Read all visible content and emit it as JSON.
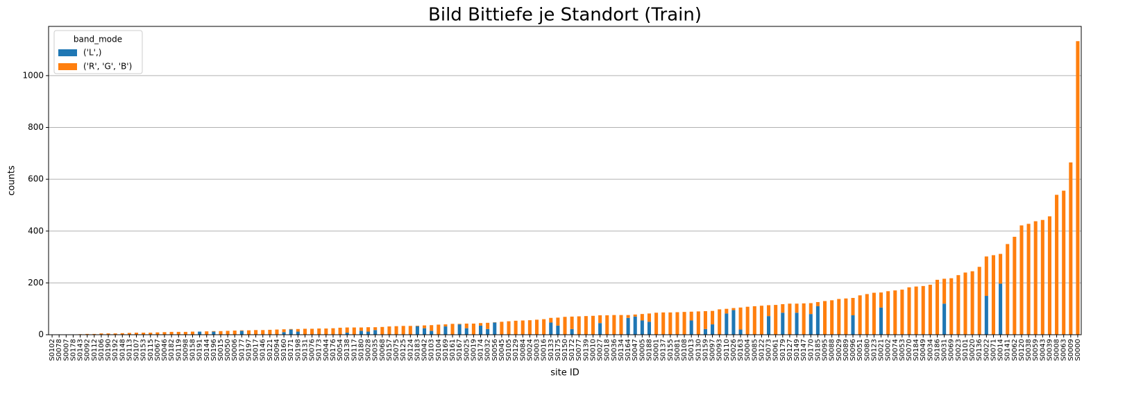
{
  "chart_data": {
    "type": "stacked_bar",
    "title": "Bild Bittiefe je Standort (Train)",
    "xlabel": "site ID",
    "ylabel": "counts",
    "legend_title": "band_mode",
    "legend_loc": "upper left",
    "grid": "y",
    "ylim": [
      0,
      1190
    ],
    "yticks": [
      0,
      200,
      400,
      600,
      800,
      1000
    ],
    "categories": [
      "S0102",
      "S0078",
      "S0007",
      "S0178",
      "S0143",
      "S0092",
      "S0112",
      "S0106",
      "S0190",
      "S0192",
      "S0148",
      "S0113",
      "S0107",
      "S0153",
      "S0115",
      "S0067",
      "S0046",
      "S0182",
      "S0119",
      "S0098",
      "S0158",
      "S0191",
      "S0144",
      "S0196",
      "S0015",
      "S0050",
      "S0006",
      "S0177",
      "S0197",
      "S0017",
      "S0146",
      "S0121",
      "S0094",
      "S0160",
      "S0171",
      "S0198",
      "S0131",
      "S0076",
      "S0173",
      "S0044",
      "S0176",
      "S0054",
      "S0138",
      "S0117",
      "S0180",
      "S0028",
      "S0035",
      "S0068",
      "S0157",
      "S0075",
      "S0125",
      "S0124",
      "S0183",
      "S0042",
      "S0103",
      "S0104",
      "S0169",
      "S0161",
      "S0167",
      "S0025",
      "S0019",
      "S0174",
      "S0032",
      "S0056",
      "S0045",
      "S0105",
      "S0129",
      "S0084",
      "S0024",
      "S0003",
      "S0016",
      "S0133",
      "S0175",
      "S0150",
      "S0172",
      "S0077",
      "S0139",
      "S0010",
      "S0027",
      "S0018",
      "S0036",
      "S0134",
      "S0164",
      "S0047",
      "S0005",
      "S0188",
      "S0001",
      "S0137",
      "S0155",
      "S0081",
      "S0108",
      "S0013",
      "S0130",
      "S0159",
      "S0097",
      "S0093",
      "S0110",
      "S0026",
      "S0163",
      "S0004",
      "S0085",
      "S0122",
      "S0073",
      "S0061",
      "S0179",
      "S0127",
      "S0149",
      "S0147",
      "S0170",
      "S0185",
      "S0095",
      "S0088",
      "S0029",
      "S0089",
      "S0096",
      "S0051",
      "S0080",
      "S0123",
      "S0021",
      "S0002",
      "S0074",
      "S0053",
      "S0070",
      "S0184",
      "S0049",
      "S0034",
      "S0186",
      "S0031",
      "S0069",
      "S0023",
      "S0101",
      "S0020",
      "S0136",
      "S0022",
      "S0071",
      "S0014",
      "S0141",
      "S0062",
      "S0120",
      "S0038",
      "S0059",
      "S0043",
      "S0039",
      "S0008",
      "S0063",
      "S0009",
      "S0000"
    ],
    "series": [
      {
        "name": "('L',)",
        "color": "#1f77b4",
        "values": [
          0,
          0,
          0,
          0,
          0,
          0,
          0,
          0,
          0,
          0,
          0,
          0,
          0,
          0,
          0,
          0,
          0,
          0,
          0,
          0,
          0,
          12,
          0,
          12,
          0,
          0,
          0,
          15,
          0,
          0,
          0,
          0,
          0,
          10,
          20,
          12,
          0,
          0,
          0,
          0,
          0,
          0,
          8,
          0,
          15,
          12,
          18,
          0,
          0,
          0,
          0,
          0,
          33,
          25,
          15,
          0,
          32,
          0,
          40,
          25,
          0,
          35,
          22,
          47,
          0,
          0,
          0,
          0,
          0,
          0,
          0,
          47,
          35,
          0,
          22,
          0,
          0,
          0,
          45,
          0,
          0,
          0,
          65,
          70,
          55,
          50,
          0,
          0,
          0,
          0,
          0,
          55,
          0,
          22,
          40,
          0,
          82,
          95,
          20,
          0,
          0,
          0,
          72,
          0,
          85,
          0,
          85,
          0,
          80,
          110,
          0,
          0,
          0,
          0,
          75,
          0,
          0,
          0,
          105,
          0,
          0,
          0,
          0,
          0,
          0,
          0,
          0,
          120,
          0,
          0,
          0,
          0,
          0,
          150,
          0,
          197,
          0,
          0,
          0,
          0,
          0,
          0,
          0,
          0,
          0,
          0,
          0
        ]
      },
      {
        "name": "('R', 'G', 'B')",
        "color": "#ff7f0e",
        "values": [
          1,
          1,
          1,
          1,
          2,
          3,
          3,
          5,
          5,
          5,
          6,
          7,
          8,
          8,
          8,
          9,
          10,
          11,
          11,
          11,
          12,
          0,
          13,
          2,
          14,
          15,
          16,
          2,
          17,
          18,
          18,
          19,
          20,
          11,
          2,
          10,
          23,
          23,
          24,
          24,
          25,
          27,
          20,
          28,
          13,
          17,
          11,
          30,
          32,
          33,
          34,
          34,
          2,
          11,
          22,
          39,
          8,
          42,
          2,
          18,
          43,
          10,
          24,
          1,
          50,
          52,
          54,
          55,
          56,
          58,
          60,
          18,
          31,
          69,
          48,
          71,
          72,
          73,
          30,
          75,
          76,
          76,
          11,
          8,
          25,
          32,
          85,
          86,
          86,
          87,
          88,
          34,
          90,
          69,
          52,
          98,
          18,
          8,
          85,
          108,
          110,
          112,
          42,
          115,
          33,
          120,
          35,
          121,
          42,
          16,
          130,
          133,
          138,
          140,
          67,
          152,
          157,
          162,
          58,
          168,
          171,
          174,
          183,
          186,
          188,
          193,
          212,
          96,
          218,
          230,
          240,
          245,
          262,
          152,
          307,
          115,
          350,
          378,
          422,
          428,
          438,
          443,
          457,
          540,
          556,
          665,
          1133
        ]
      }
    ]
  }
}
